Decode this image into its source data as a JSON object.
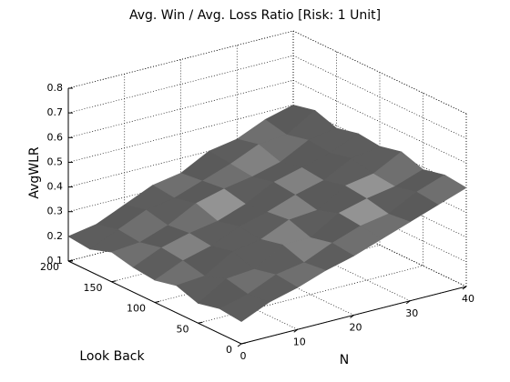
{
  "chart_data": {
    "type": "surface",
    "title": "Avg. Win / Avg. Loss Ratio [Risk: 1 Unit]",
    "xlabel": "N",
    "ylabel": "Look Back",
    "zlabel": "AvgWLR",
    "x": [
      0,
      5,
      10,
      15,
      20,
      25,
      30,
      35,
      40
    ],
    "y": [
      0,
      25,
      50,
      75,
      100,
      125,
      150,
      175,
      200
    ],
    "z": [
      [
        0.19,
        0.24,
        0.27,
        0.31,
        0.34,
        0.38,
        0.42,
        0.46,
        0.5
      ],
      [
        0.2,
        0.23,
        0.28,
        0.3,
        0.35,
        0.39,
        0.41,
        0.47,
        0.51
      ],
      [
        0.18,
        0.25,
        0.26,
        0.33,
        0.33,
        0.4,
        0.43,
        0.45,
        0.49
      ],
      [
        0.21,
        0.22,
        0.29,
        0.31,
        0.36,
        0.37,
        0.44,
        0.46,
        0.52
      ],
      [
        0.19,
        0.24,
        0.27,
        0.32,
        0.35,
        0.39,
        0.42,
        0.48,
        0.5
      ],
      [
        0.2,
        0.25,
        0.28,
        0.3,
        0.34,
        0.4,
        0.43,
        0.46,
        0.51
      ],
      [
        0.22,
        0.23,
        0.27,
        0.33,
        0.36,
        0.38,
        0.41,
        0.47,
        0.49
      ],
      [
        0.19,
        0.24,
        0.29,
        0.31,
        0.35,
        0.39,
        0.44,
        0.45,
        0.52
      ],
      [
        0.2,
        0.22,
        0.27,
        0.32,
        0.34,
        0.4,
        0.42,
        0.47,
        0.5
      ]
    ],
    "xlim": [
      0,
      40
    ],
    "ylim": [
      0,
      200
    ],
    "zlim": [
      0.1,
      0.8
    ],
    "xticks": [
      0,
      10,
      20,
      30,
      40
    ],
    "yticks": [
      0,
      50,
      100,
      150,
      200
    ],
    "zticks": [
      0.1,
      0.2,
      0.3,
      0.4,
      0.5,
      0.6,
      0.7,
      0.8
    ],
    "grid": true,
    "color": "#a8a8a8"
  }
}
